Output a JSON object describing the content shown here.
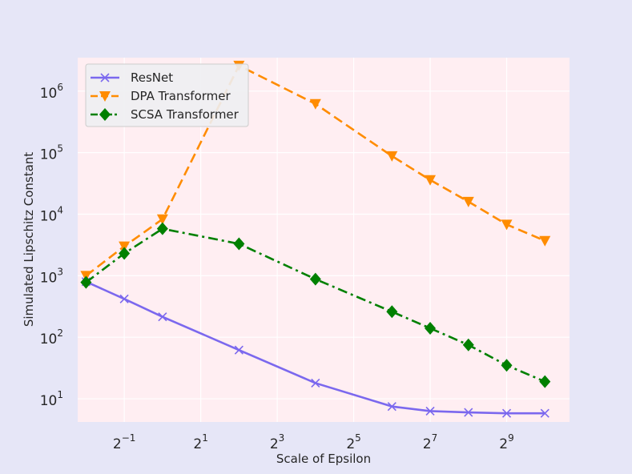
{
  "chart_data": {
    "type": "line",
    "title": "",
    "xlabel": "Scale of Epsilon",
    "ylabel": "Simulated Lipschitz Constant",
    "x_scale": "log2",
    "y_scale": "log10",
    "xlim": [
      0.215,
      1600
    ],
    "ylim": [
      4.2,
      3500000
    ],
    "x_ticks": [
      {
        "value": 0.5,
        "base": "2",
        "exp": "−1"
      },
      {
        "value": 2,
        "base": "2",
        "exp": "1"
      },
      {
        "value": 8,
        "base": "2",
        "exp": "3"
      },
      {
        "value": 32,
        "base": "2",
        "exp": "5"
      },
      {
        "value": 128,
        "base": "2",
        "exp": "7"
      },
      {
        "value": 512,
        "base": "2",
        "exp": "9"
      }
    ],
    "y_ticks": [
      {
        "value": 10,
        "base": "10",
        "exp": "1"
      },
      {
        "value": 100,
        "base": "10",
        "exp": "2"
      },
      {
        "value": 1000,
        "base": "10",
        "exp": "3"
      },
      {
        "value": 10000,
        "base": "10",
        "exp": "4"
      },
      {
        "value": 100000,
        "base": "10",
        "exp": "5"
      },
      {
        "value": 1000000,
        "base": "10",
        "exp": "6"
      }
    ],
    "grid": true,
    "legend_position": "top-left",
    "series": [
      {
        "name": "ResNet",
        "color": "#7b68ee",
        "marker": "x",
        "dash": "solid",
        "x": [
          0.25,
          0.5,
          1,
          4,
          16,
          64,
          128,
          256,
          512,
          1024
        ],
        "y": [
          800,
          420,
          215,
          62,
          18,
          7.5,
          6.3,
          6.0,
          5.8,
          5.8
        ]
      },
      {
        "name": "DPA Transformer",
        "color": "#ff8c00",
        "marker": "triangle-down",
        "dash": "dashed",
        "x": [
          0.25,
          0.5,
          1,
          4,
          16,
          64,
          128,
          256,
          512,
          1024
        ],
        "y": [
          1000,
          3000,
          8300,
          2600000,
          620000,
          88000,
          36000,
          16000,
          6800,
          3700
        ]
      },
      {
        "name": "SCSA Transformer",
        "color": "#008000",
        "marker": "diamond",
        "dash": "dashdot",
        "x": [
          0.25,
          0.5,
          1,
          4,
          16,
          64,
          128,
          256,
          512,
          1024
        ],
        "y": [
          780,
          2300,
          5800,
          3300,
          880,
          260,
          140,
          75,
          35,
          19
        ]
      }
    ]
  }
}
